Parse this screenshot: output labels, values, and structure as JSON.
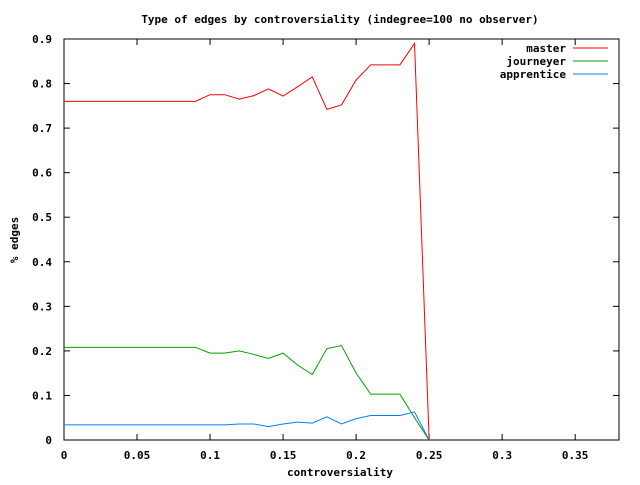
{
  "chart_data": {
    "type": "line",
    "title": "Type of edges by controversiality (indegree=100 no observer)",
    "xlabel": "controversiality",
    "ylabel": "% edges",
    "xlim": [
      0,
      0.38
    ],
    "ylim": [
      0,
      0.9
    ],
    "xticks": [
      0,
      0.05,
      0.1,
      0.15,
      0.2,
      0.25,
      0.3,
      0.35
    ],
    "xtick_labels": [
      "0",
      "0.05",
      "0.1",
      "0.15",
      "0.2",
      "0.25",
      "0.3",
      "0.35"
    ],
    "yticks": [
      0,
      0.1,
      0.2,
      0.3,
      0.4,
      0.5,
      0.6,
      0.7,
      0.8,
      0.9
    ],
    "ytick_labels": [
      "0",
      "0.1",
      "0.2",
      "0.3",
      "0.4",
      "0.5",
      "0.6",
      "0.7",
      "0.8",
      "0.9"
    ],
    "grid": false,
    "legend_position": "top-right",
    "x": [
      0,
      0.01,
      0.02,
      0.03,
      0.04,
      0.05,
      0.06,
      0.07,
      0.08,
      0.09,
      0.1,
      0.11,
      0.12,
      0.13,
      0.14,
      0.15,
      0.16,
      0.17,
      0.18,
      0.19,
      0.2,
      0.21,
      0.22,
      0.23,
      0.24,
      0.25
    ],
    "series": [
      {
        "name": "master",
        "color": "#ff0000",
        "values": [
          0.76,
          0.76,
          0.76,
          0.76,
          0.76,
          0.76,
          0.76,
          0.76,
          0.76,
          0.76,
          0.775,
          0.775,
          0.765,
          0.773,
          0.788,
          0.772,
          0.793,
          0.815,
          0.742,
          0.752,
          0.808,
          0.842,
          0.842,
          0.842,
          0.89,
          0.0
        ]
      },
      {
        "name": "journeyer",
        "color": "#00a000",
        "values": [
          0.208,
          0.208,
          0.208,
          0.208,
          0.208,
          0.208,
          0.208,
          0.208,
          0.208,
          0.208,
          0.195,
          0.195,
          0.2,
          0.192,
          0.183,
          0.195,
          0.168,
          0.147,
          0.205,
          0.212,
          0.15,
          0.103,
          0.103,
          0.103,
          0.05,
          0.0
        ]
      },
      {
        "name": "apprentice",
        "color": "#0080ff",
        "values": [
          0.034,
          0.034,
          0.034,
          0.034,
          0.034,
          0.034,
          0.034,
          0.034,
          0.034,
          0.034,
          0.034,
          0.034,
          0.036,
          0.036,
          0.03,
          0.036,
          0.04,
          0.038,
          0.052,
          0.036,
          0.048,
          0.055,
          0.055,
          0.055,
          0.063,
          0.0
        ]
      }
    ]
  }
}
